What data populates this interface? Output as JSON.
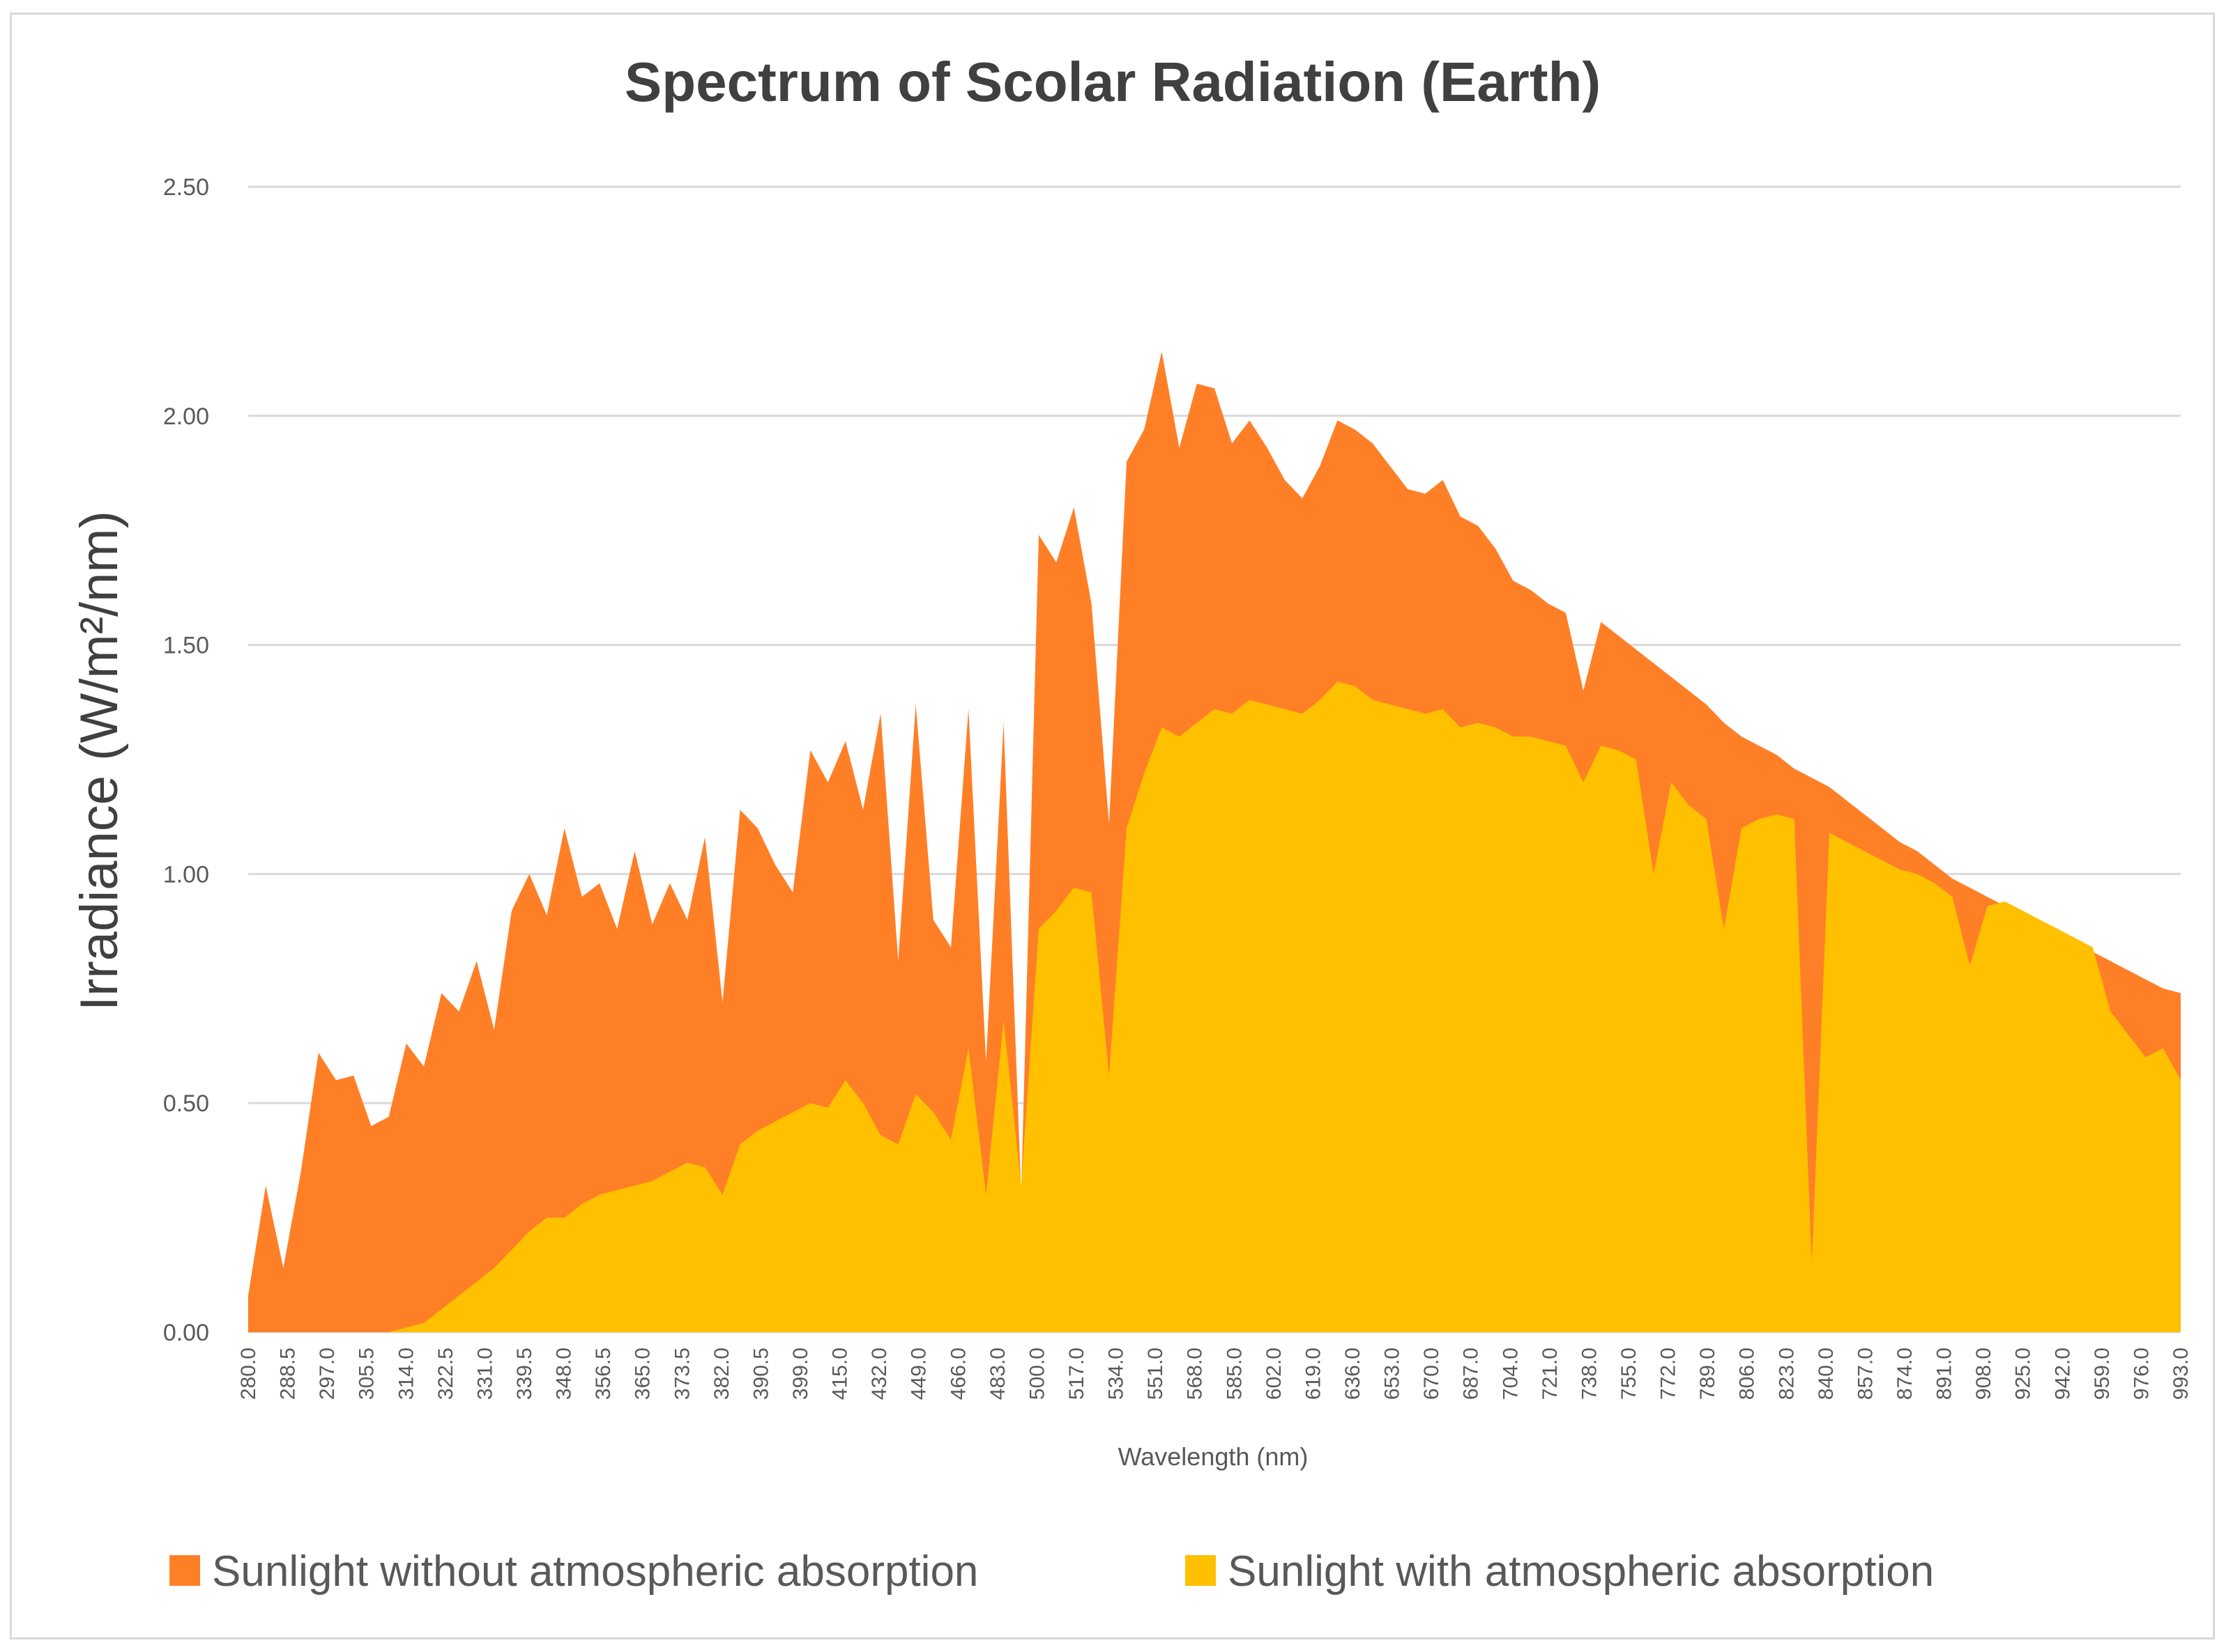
{
  "chart_data": {
    "type": "area",
    "title": "Spectrum of Scolar Radiation (Earth)",
    "xlabel": "Wavelength (nm)",
    "ylabel": "Irradiance (W/m²/nm)",
    "ylim": [
      0,
      2.5
    ],
    "y_ticks": [
      "0.00",
      "0.50",
      "1.00",
      "1.50",
      "2.00",
      "2.50"
    ],
    "grid": true,
    "legend_position": "bottom",
    "x_ticks": [
      "280.0",
      "288.5",
      "297.0",
      "305.5",
      "314.0",
      "322.5",
      "331.0",
      "339.5",
      "348.0",
      "356.5",
      "365.0",
      "373.5",
      "382.0",
      "390.5",
      "399.0",
      "415.0",
      "432.0",
      "449.0",
      "466.0",
      "483.0",
      "500.0",
      "517.0",
      "534.0",
      "551.0",
      "568.0",
      "585.0",
      "602.0",
      "619.0",
      "636.0",
      "653.0",
      "670.0",
      "687.0",
      "704.0",
      "721.0",
      "738.0",
      "755.0",
      "772.0",
      "789.0",
      "806.0",
      "823.0",
      "840.0",
      "857.0",
      "874.0",
      "891.0",
      "908.0",
      "925.0",
      "942.0",
      "959.0",
      "976.0",
      "993.0"
    ],
    "series": [
      {
        "name": "Sunlight without atmospheric absorption",
        "color": "#FF7F27",
        "values": [
          0.08,
          0.32,
          0.14,
          0.35,
          0.61,
          0.55,
          0.56,
          0.45,
          0.47,
          0.63,
          0.58,
          0.74,
          0.7,
          0.81,
          0.66,
          0.92,
          1.0,
          0.91,
          1.1,
          0.95,
          0.98,
          0.88,
          1.05,
          0.89,
          0.98,
          0.9,
          1.08,
          0.72,
          1.14,
          1.1,
          1.02,
          0.96,
          1.27,
          1.2,
          1.29,
          1.14,
          1.35,
          0.81,
          1.37,
          0.9,
          0.84,
          1.36,
          0.59,
          1.33,
          0.3,
          1.74,
          1.68,
          1.8,
          1.59,
          1.11,
          1.9,
          1.97,
          2.14,
          1.93,
          2.07,
          2.06,
          1.94,
          1.99,
          1.93,
          1.86,
          1.82,
          1.89,
          1.99,
          1.97,
          1.94,
          1.89,
          1.84,
          1.83,
          1.86,
          1.78,
          1.76,
          1.71,
          1.64,
          1.62,
          1.59,
          1.57,
          1.4,
          1.55,
          1.52,
          1.49,
          1.46,
          1.43,
          1.4,
          1.37,
          1.33,
          1.3,
          1.28,
          1.26,
          1.23,
          1.21,
          1.19,
          1.16,
          1.13,
          1.1,
          1.07,
          1.05,
          1.02,
          0.99,
          0.97,
          0.95,
          0.93,
          0.91,
          0.89,
          0.87,
          0.85,
          0.83,
          0.81,
          0.79,
          0.77,
          0.75,
          0.74
        ]
      },
      {
        "name": "Sunlight with atmospheric absorption",
        "color": "#FFC000",
        "values": [
          0,
          0,
          0,
          0,
          0,
          0,
          0,
          0,
          0,
          0.01,
          0.02,
          0.05,
          0.08,
          0.11,
          0.14,
          0.18,
          0.22,
          0.25,
          0.25,
          0.28,
          0.3,
          0.31,
          0.32,
          0.33,
          0.35,
          0.37,
          0.36,
          0.3,
          0.41,
          0.44,
          0.46,
          0.48,
          0.5,
          0.49,
          0.55,
          0.5,
          0.43,
          0.41,
          0.52,
          0.48,
          0.42,
          0.62,
          0.3,
          0.68,
          0.32,
          0.88,
          0.92,
          0.97,
          0.96,
          0.56,
          1.1,
          1.22,
          1.32,
          1.3,
          1.33,
          1.36,
          1.35,
          1.38,
          1.37,
          1.36,
          1.35,
          1.38,
          1.42,
          1.41,
          1.38,
          1.37,
          1.36,
          1.35,
          1.36,
          1.32,
          1.33,
          1.32,
          1.3,
          1.3,
          1.29,
          1.28,
          1.2,
          1.28,
          1.27,
          1.25,
          1.0,
          1.2,
          1.15,
          1.12,
          0.88,
          1.1,
          1.12,
          1.13,
          1.12,
          0.15,
          1.09,
          1.07,
          1.05,
          1.03,
          1.01,
          1.0,
          0.98,
          0.95,
          0.8,
          0.93,
          0.94,
          0.92,
          0.9,
          0.88,
          0.86,
          0.84,
          0.7,
          0.65,
          0.6,
          0.62,
          0.55
        ]
      }
    ]
  }
}
